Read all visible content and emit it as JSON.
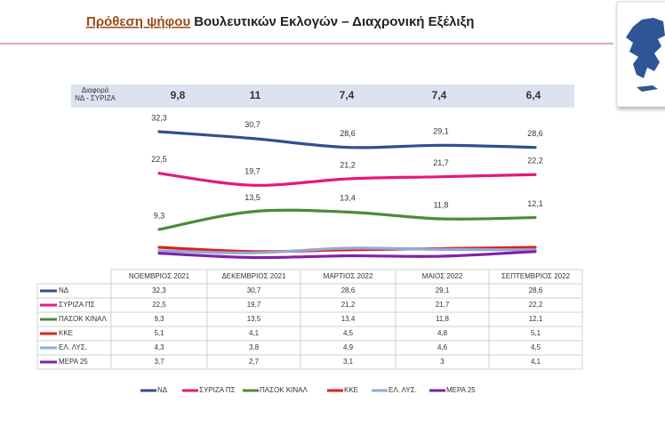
{
  "chart_data": {
    "type": "line",
    "title_highlight": "Πρόθεση ψήφου",
    "title": "Βουλευτικών Εκλογών – Διαχρονική Εξέλιξη",
    "categories": [
      "ΝΟΕΜΒΡΙΟΣ 2021",
      "ΔΕΚΕΜΒΡΙΟΣ 2021",
      "ΜΑΡΤΙΟΣ 2022",
      "ΜΑΙΟΣ 2022",
      "ΣΕΠΤΕΜΒΡΙΟΣ 2022"
    ],
    "difference": {
      "label": [
        "Διαφορά",
        "ΝΔ - ΣΥΡΙΖΑ"
      ],
      "values": [
        9.8,
        11,
        7.4,
        7.4,
        6.4
      ],
      "value_labels": [
        "9,8",
        "11",
        "7,4",
        "7,4",
        "6,4"
      ]
    },
    "series": [
      {
        "name": "ΝΔ",
        "color": "#2f4f8f",
        "show_labels": true,
        "values": [
          32.3,
          30.7,
          28.6,
          29.1,
          28.6
        ],
        "value_labels": [
          "32,3",
          "30,7",
          "28,6",
          "29,1",
          "28,6"
        ]
      },
      {
        "name": "ΣΥΡΙΖΑ ΠΣ",
        "color": "#e5187b",
        "show_labels": true,
        "values": [
          22.5,
          19.7,
          21.2,
          21.7,
          22.2
        ],
        "value_labels": [
          "22,5",
          "19,7",
          "21,2",
          "21,7",
          "22,2"
        ]
      },
      {
        "name": "ΠΑΣΟΚ ΚΙΝΑΛ",
        "color": "#4f8a35",
        "show_labels": true,
        "values": [
          9.3,
          13.5,
          13.4,
          11.8,
          12.1
        ],
        "value_labels": [
          "9,3",
          "13,5",
          "13,4",
          "11,8",
          "12,1"
        ]
      },
      {
        "name": "ΚΚΕ",
        "color": "#e0211c",
        "show_labels": false,
        "values": [
          5.1,
          4.1,
          4.5,
          4.8,
          5.1
        ],
        "value_labels": [
          "5,1",
          "4,1",
          "4,5",
          "4,8",
          "5,1"
        ]
      },
      {
        "name": "ΕΛ. ΛΥΣ.",
        "color": "#8eaadb",
        "show_labels": false,
        "values": [
          4.3,
          3.8,
          4.9,
          4.6,
          4.5
        ],
        "value_labels": [
          "4,3",
          "3,8",
          "4,9",
          "4,6",
          "4,5"
        ]
      },
      {
        "name": "ΜΕΡΑ 25",
        "color": "#7f22a8",
        "show_labels": false,
        "values": [
          3.7,
          2.7,
          3.1,
          3,
          4.1
        ],
        "value_labels": [
          "3,7",
          "2,7",
          "3,1",
          "3",
          "4,1"
        ]
      }
    ]
  }
}
